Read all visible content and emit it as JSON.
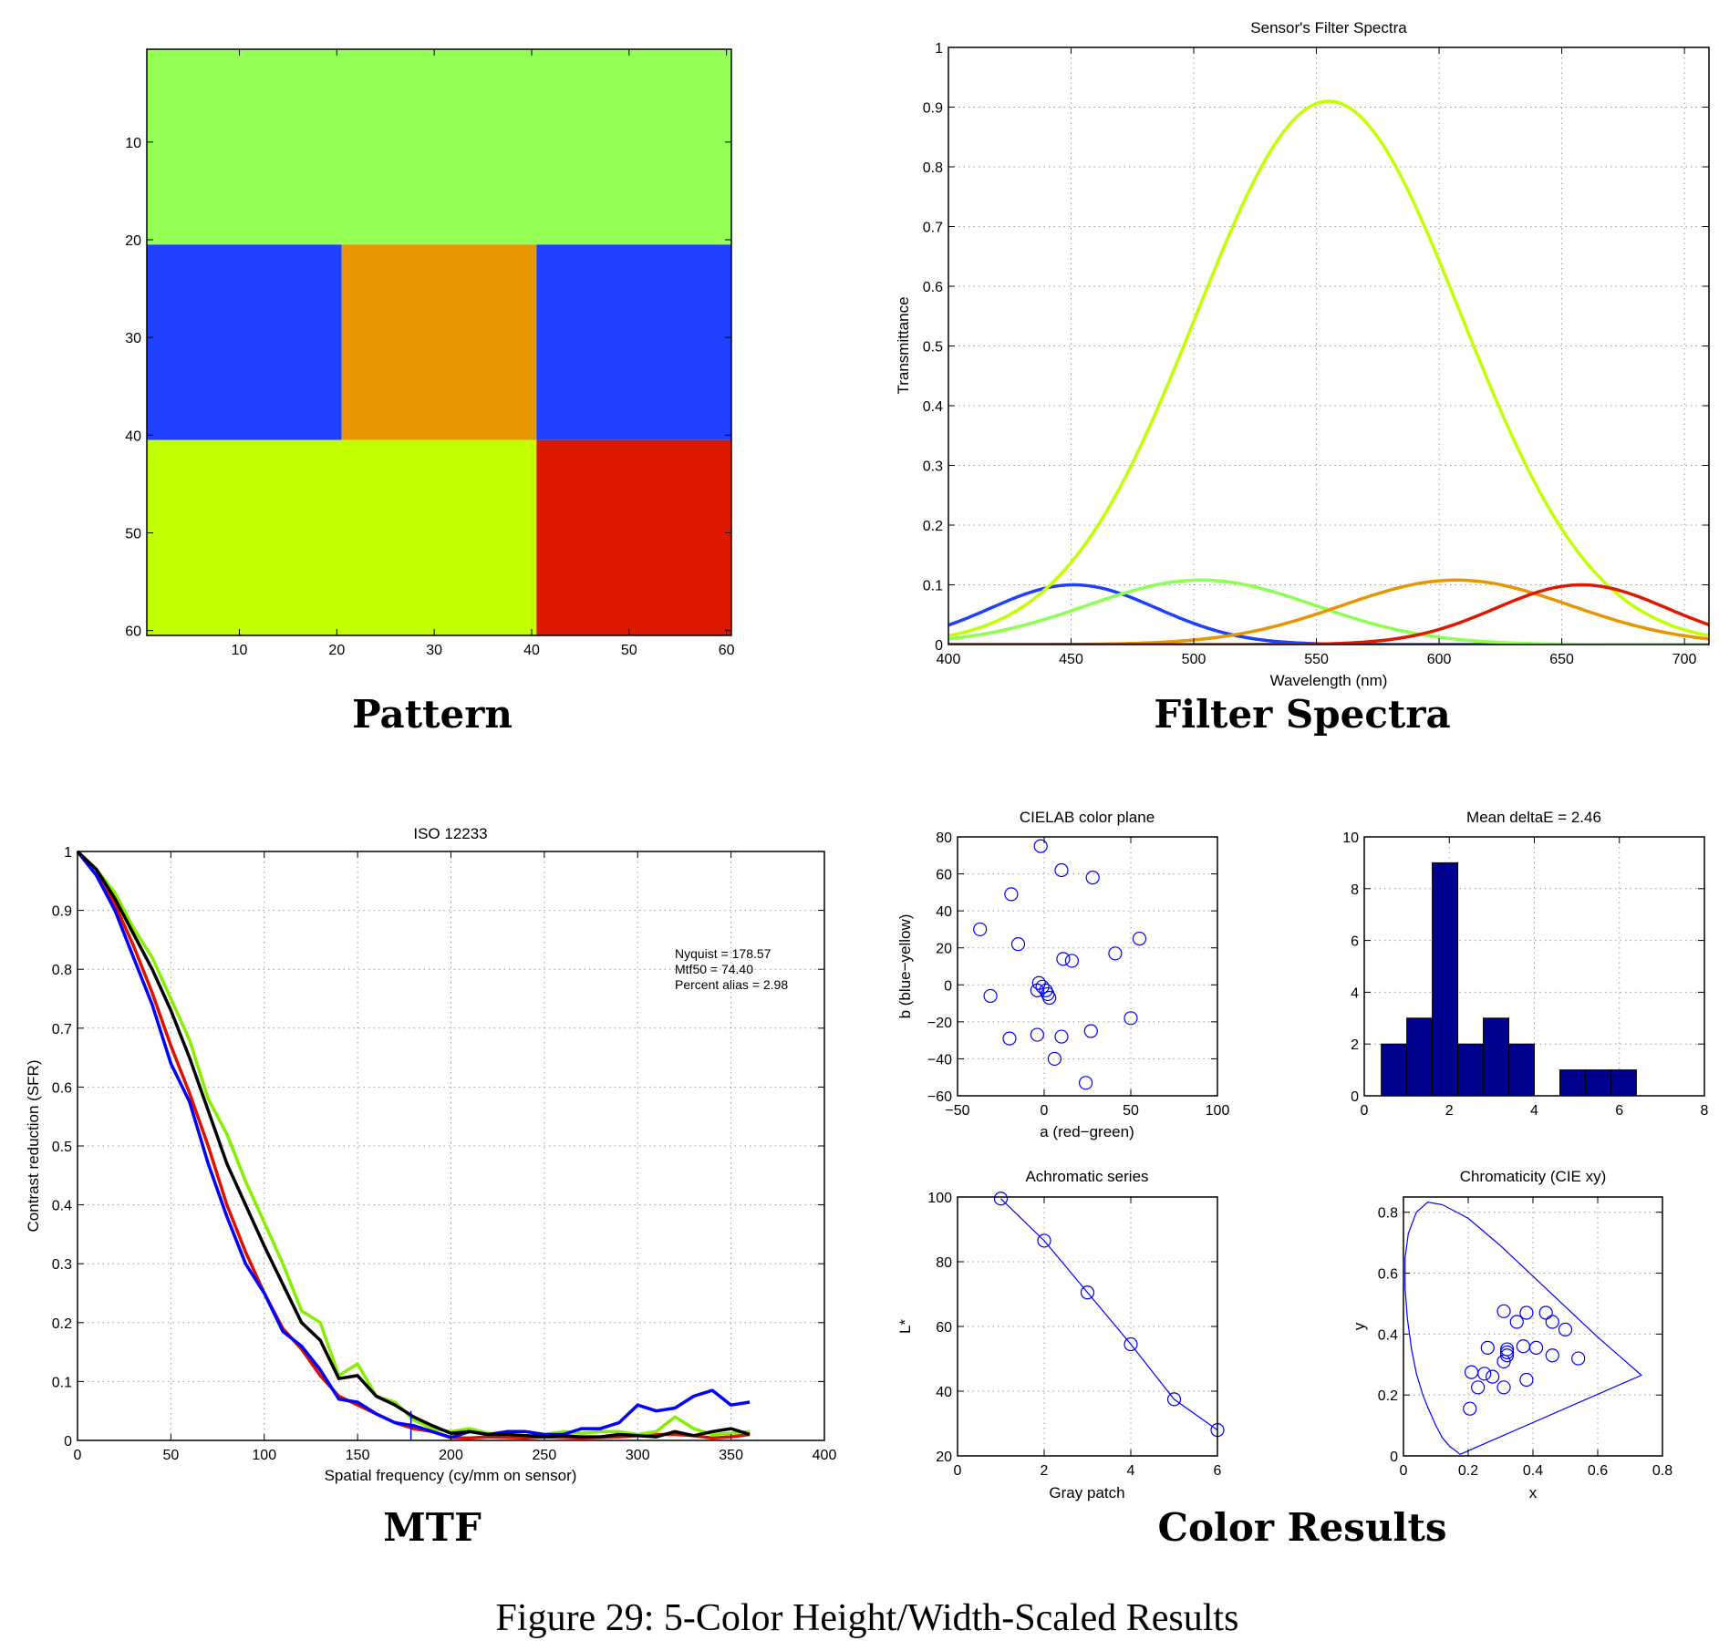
{
  "labels": {
    "pattern": "Pattern",
    "filter": "Filter Spectra",
    "mtf": "MTF",
    "color": "Color Results",
    "caption": "Figure 29: 5-Color Height/Width-Scaled Results"
  },
  "chart_data": [
    {
      "id": "pattern",
      "type": "heatmap",
      "title": "",
      "xlim": [
        0.5,
        60.5
      ],
      "ylim": [
        0.5,
        60.5
      ],
      "y_reversed": true,
      "xticks": [
        10,
        20,
        30,
        40,
        50,
        60
      ],
      "yticks": [
        10,
        20,
        30,
        40,
        50,
        60
      ],
      "grid": false,
      "blocks": [
        {
          "rows": [
            1,
            20
          ],
          "cols": [
            1,
            60
          ],
          "color": "#94ff55"
        },
        {
          "rows": [
            21,
            40
          ],
          "cols": [
            1,
            20
          ],
          "color": "#2040ff"
        },
        {
          "rows": [
            21,
            40
          ],
          "cols": [
            21,
            40
          ],
          "color": "#e89600"
        },
        {
          "rows": [
            21,
            40
          ],
          "cols": [
            41,
            60
          ],
          "color": "#2040ff"
        },
        {
          "rows": [
            41,
            60
          ],
          "cols": [
            1,
            40
          ],
          "color": "#c2ff00"
        },
        {
          "rows": [
            41,
            60
          ],
          "cols": [
            41,
            60
          ],
          "color": "#dd1a00"
        }
      ]
    },
    {
      "id": "filter",
      "type": "line",
      "title": "Sensor's Filter Spectra",
      "xlabel": "Wavelength (nm)",
      "ylabel": "Transmittance",
      "xlim": [
        400,
        710
      ],
      "ylim": [
        0,
        1
      ],
      "xticks": [
        400,
        450,
        500,
        550,
        600,
        650,
        700
      ],
      "yticks": [
        0,
        0.1,
        0.2,
        0.3,
        0.4,
        0.5,
        0.6,
        0.7,
        0.8,
        0.9,
        1
      ],
      "grid": true,
      "series": [
        {
          "color": "#2040ff",
          "peak_nm": 451,
          "peak": 0.1,
          "sigma_nm": 34
        },
        {
          "color": "#8cff50",
          "peak_nm": 503,
          "peak": 0.108,
          "sigma_nm": 46.5
        },
        {
          "color": "#c2ff00",
          "peak_nm": 555,
          "peak": 0.91,
          "sigma_nm": 54
        },
        {
          "color": "#e89600",
          "peak_nm": 607,
          "peak": 0.108,
          "sigma_nm": 46.5
        },
        {
          "color": "#dd1a00",
          "peak_nm": 658,
          "peak": 0.1,
          "sigma_nm": 35
        }
      ]
    },
    {
      "id": "mtf",
      "type": "line",
      "title": "ISO 12233",
      "xlabel": "Spatial frequency (cy/mm on sensor)",
      "ylabel": "Contrast reduction (SFR)",
      "xlim": [
        0,
        400
      ],
      "ylim": [
        0,
        1
      ],
      "xticks": [
        0,
        50,
        100,
        150,
        200,
        250,
        300,
        350,
        400
      ],
      "yticks": [
        0,
        0.1,
        0.2,
        0.3,
        0.4,
        0.5,
        0.6,
        0.7,
        0.8,
        0.9,
        1
      ],
      "grid": true,
      "annotations": [
        "Nyquist = 178.57",
        "Mtf50 = 74.40",
        "Percent alias = 2.98"
      ],
      "nyquist": 178.57,
      "x": [
        0,
        10,
        20,
        30,
        40,
        50,
        60,
        70,
        80,
        90,
        100,
        110,
        120,
        130,
        140,
        150,
        160,
        170,
        180,
        190,
        200,
        210,
        220,
        230,
        240,
        250,
        260,
        270,
        280,
        290,
        300,
        310,
        320,
        330,
        340,
        350,
        360
      ],
      "series": [
        {
          "color": "#dd1100",
          "values": [
            1,
            0.96,
            0.91,
            0.84,
            0.76,
            0.67,
            0.59,
            0.5,
            0.4,
            0.32,
            0.25,
            0.19,
            0.155,
            0.11,
            0.075,
            0.06,
            0.045,
            0.03,
            0.02,
            0.015,
            0.005,
            0.004,
            0.006,
            0.005,
            0.004,
            0.006,
            0.005,
            0.004,
            0.005,
            0.006,
            0.008,
            0.01,
            0.01,
            0.008,
            0.004,
            0.006,
            0.01
          ]
        },
        {
          "color": "#88ee00",
          "values": [
            1,
            0.97,
            0.93,
            0.87,
            0.82,
            0.75,
            0.68,
            0.58,
            0.52,
            0.44,
            0.37,
            0.3,
            0.22,
            0.2,
            0.11,
            0.13,
            0.075,
            0.065,
            0.035,
            0.02,
            0.015,
            0.02,
            0.012,
            0.01,
            0.008,
            0.01,
            0.015,
            0.012,
            0.015,
            0.015,
            0.01,
            0.015,
            0.04,
            0.02,
            0.01,
            0.012,
            0.015
          ]
        },
        {
          "color": "#0000ff",
          "values": [
            1,
            0.96,
            0.9,
            0.82,
            0.74,
            0.64,
            0.575,
            0.47,
            0.38,
            0.3,
            0.25,
            0.185,
            0.16,
            0.12,
            0.07,
            0.065,
            0.045,
            0.03,
            0.025,
            0.015,
            0.005,
            0.015,
            0.01,
            0.015,
            0.015,
            0.01,
            0.01,
            0.02,
            0.02,
            0.03,
            0.06,
            0.05,
            0.055,
            0.075,
            0.085,
            0.06,
            0.065
          ]
        },
        {
          "color": "#000000",
          "values": [
            1,
            0.97,
            0.92,
            0.86,
            0.8,
            0.73,
            0.65,
            0.56,
            0.47,
            0.4,
            0.33,
            0.265,
            0.2,
            0.17,
            0.105,
            0.11,
            0.075,
            0.06,
            0.04,
            0.025,
            0.012,
            0.015,
            0.01,
            0.01,
            0.008,
            0.006,
            0.008,
            0.006,
            0.006,
            0.01,
            0.008,
            0.006,
            0.015,
            0.008,
            0.015,
            0.02,
            0.01
          ]
        }
      ]
    },
    {
      "id": "cielab",
      "type": "scatter",
      "title": "CIELAB color plane",
      "xlabel": "a (red−green)",
      "ylabel": "b (blue−yellow)",
      "xlim": [
        -50,
        100
      ],
      "ylim": [
        -60,
        80
      ],
      "xticks": [
        -50,
        0,
        50,
        100
      ],
      "yticks": [
        -60,
        -40,
        -20,
        0,
        20,
        40,
        60,
        80
      ],
      "grid": true,
      "points": [
        [
          -2,
          75
        ],
        [
          10,
          62
        ],
        [
          28,
          58
        ],
        [
          -19,
          49
        ],
        [
          -37,
          30
        ],
        [
          -15,
          22
        ],
        [
          55,
          25
        ],
        [
          41,
          17
        ],
        [
          11,
          14
        ],
        [
          16,
          13
        ],
        [
          -3,
          1
        ],
        [
          -1,
          -1
        ],
        [
          -4,
          -3
        ],
        [
          1,
          -3
        ],
        [
          2,
          -5
        ],
        [
          3,
          -7
        ],
        [
          -31,
          -6
        ],
        [
          50,
          -18
        ],
        [
          27,
          -25
        ],
        [
          -20,
          -29
        ],
        [
          -4,
          -27
        ],
        [
          10,
          -28
        ],
        [
          6,
          -40
        ],
        [
          24,
          -53
        ]
      ]
    },
    {
      "id": "hist",
      "type": "bar",
      "title": "Mean deltaE = 2.46",
      "xlim": [
        0,
        8
      ],
      "ylim": [
        0,
        10
      ],
      "xticks": [
        0,
        2,
        4,
        6,
        8
      ],
      "yticks": [
        0,
        2,
        4,
        6,
        8,
        10
      ],
      "grid": true,
      "color": "#00008f",
      "bin_edges": [
        0.4,
        1.0,
        1.6,
        2.2,
        2.8,
        3.4,
        4.0,
        4.6,
        5.2,
        5.8,
        6.4
      ],
      "counts": [
        2,
        3,
        9,
        2,
        3,
        2,
        0,
        1,
        1,
        1
      ]
    },
    {
      "id": "achrom",
      "type": "line",
      "title": "Achromatic series",
      "xlabel": "Gray patch",
      "ylabel": "L*",
      "xlim": [
        0,
        6
      ],
      "ylim": [
        20,
        100
      ],
      "xticks": [
        0,
        2,
        4,
        6
      ],
      "yticks": [
        20,
        40,
        60,
        80,
        100
      ],
      "grid": true,
      "x": [
        1,
        2,
        3,
        4,
        5,
        6
      ],
      "values": [
        99.5,
        86.5,
        70.5,
        54.5,
        37.5,
        28
      ]
    },
    {
      "id": "chroma",
      "type": "scatter",
      "title": "Chromaticity (CIE xy)",
      "xlabel": "x",
      "ylabel": "y",
      "xlim": [
        0,
        0.8
      ],
      "ylim": [
        0,
        0.85
      ],
      "xticks": [
        0,
        0.2,
        0.4,
        0.6,
        0.8
      ],
      "yticks": [
        0,
        0.2,
        0.4,
        0.6,
        0.8
      ],
      "grid": true,
      "locus": [
        [
          0.175,
          0.005
        ],
        [
          0.16,
          0.018
        ],
        [
          0.144,
          0.03
        ],
        [
          0.12,
          0.06
        ],
        [
          0.1,
          0.1
        ],
        [
          0.075,
          0.16
        ],
        [
          0.06,
          0.2
        ],
        [
          0.04,
          0.27
        ],
        [
          0.025,
          0.35
        ],
        [
          0.012,
          0.45
        ],
        [
          0.005,
          0.55
        ],
        [
          0.005,
          0.65
        ],
        [
          0.015,
          0.73
        ],
        [
          0.04,
          0.8
        ],
        [
          0.075,
          0.833
        ],
        [
          0.12,
          0.825
        ],
        [
          0.2,
          0.78
        ],
        [
          0.3,
          0.69
        ],
        [
          0.4,
          0.59
        ],
        [
          0.5,
          0.49
        ],
        [
          0.6,
          0.39
        ],
        [
          0.735,
          0.265
        ],
        [
          0.175,
          0.005
        ]
      ],
      "points": [
        [
          0.31,
          0.475
        ],
        [
          0.38,
          0.47
        ],
        [
          0.44,
          0.47
        ],
        [
          0.46,
          0.44
        ],
        [
          0.35,
          0.44
        ],
        [
          0.5,
          0.415
        ],
        [
          0.26,
          0.355
        ],
        [
          0.32,
          0.35
        ],
        [
          0.32,
          0.34
        ],
        [
          0.32,
          0.33
        ],
        [
          0.37,
          0.36
        ],
        [
          0.41,
          0.355
        ],
        [
          0.46,
          0.33
        ],
        [
          0.54,
          0.32
        ],
        [
          0.31,
          0.31
        ],
        [
          0.21,
          0.275
        ],
        [
          0.25,
          0.27
        ],
        [
          0.275,
          0.26
        ],
        [
          0.23,
          0.225
        ],
        [
          0.31,
          0.225
        ],
        [
          0.38,
          0.25
        ],
        [
          0.205,
          0.155
        ]
      ]
    }
  ]
}
